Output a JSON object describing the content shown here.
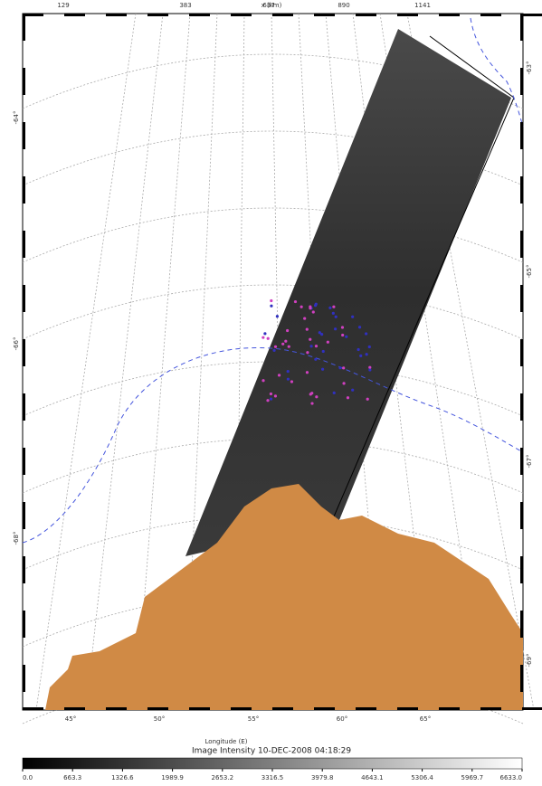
{
  "map": {
    "x_axis_label": "x (km)",
    "x_ticks": [
      "129",
      "383",
      "637",
      "890",
      "1141"
    ],
    "longitude_ticks": [
      "45°",
      "50°",
      "55°",
      "60°",
      "65°"
    ],
    "left_latitude_ticks": [
      "-64°",
      "-66°",
      "-68°"
    ],
    "right_latitude_ticks": [
      "-63°",
      "-65°",
      "-67°",
      "-69°"
    ],
    "longitude_label": "Longitude (E)"
  },
  "colorbar": {
    "title": "Image Intensity 10-DEC-2008 04:18:29",
    "ticks": [
      "0.0",
      "663.3",
      "1326.6",
      "1989.9",
      "2653.2",
      "3316.5",
      "3979.8",
      "4643.1",
      "5306.4",
      "5969.7",
      "6633.0"
    ]
  }
}
